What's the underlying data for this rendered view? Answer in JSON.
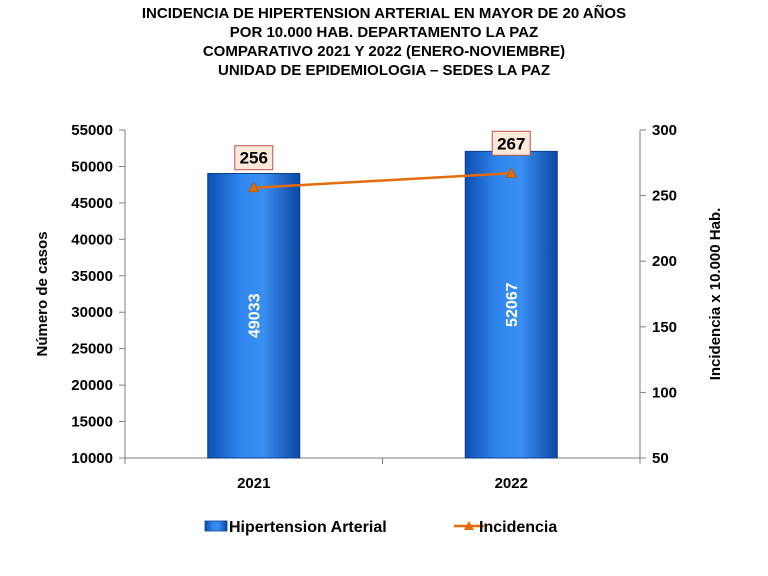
{
  "chart_data": {
    "type": "bar",
    "title_lines": [
      "INCIDENCIA DE HIPERTENSION ARTERIAL EN MAYOR DE 20 AÑOS",
      "POR 10.000 HAB. DEPARTAMENTO LA PAZ",
      "COMPARATIVO 2021 Y 2022 (ENERO-NOVIEMBRE)",
      "UNIDAD DE EPIDEMIOLOGIA – SEDES LA PAZ"
    ],
    "categories": [
      "2021",
      "2022"
    ],
    "series": [
      {
        "name": "Hipertension Arterial",
        "type": "bar",
        "axis": "left",
        "values": [
          49033,
          52067
        ],
        "color": "#1f6fd6"
      },
      {
        "name": "Incidencia",
        "type": "line",
        "axis": "right",
        "values": [
          256,
          267
        ],
        "color": "#e46c0a",
        "label_values": [
          "256",
          "267"
        ]
      }
    ],
    "ylabel": "Número de casos",
    "y2label": "Incidencia x 10.000 Hab.",
    "ylim": [
      10000,
      55000
    ],
    "yticks": [
      10000,
      15000,
      20000,
      25000,
      30000,
      35000,
      40000,
      45000,
      50000,
      55000
    ],
    "y2lim": [
      50,
      300
    ],
    "y2ticks": [
      50,
      100,
      150,
      200,
      250,
      300
    ],
    "grid": false,
    "legend_position": "bottom"
  }
}
